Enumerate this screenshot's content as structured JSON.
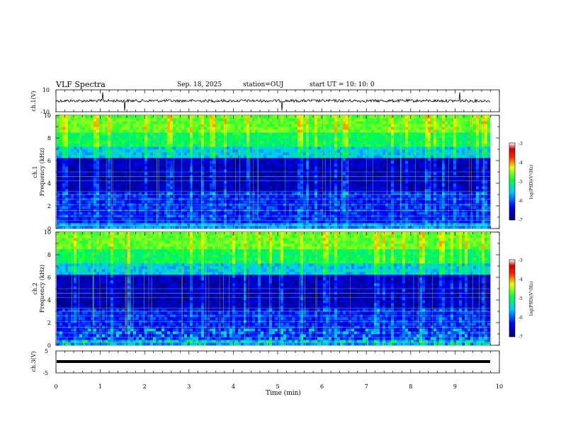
{
  "header": {
    "title": "VLF Spectra",
    "date": "Sep. 18, 2025",
    "station": "station=OUJ",
    "start_ut": "start UT =   10: 10: 0"
  },
  "chart_data": [
    {
      "type": "line",
      "panel": "ch.1 waveform",
      "ylabel": "ch.1(V)",
      "ylim": [
        -10,
        10
      ],
      "ytick_labels": [
        "10",
        "-10"
      ],
      "xlim": [
        0,
        10
      ],
      "baseline_value": 0,
      "series": [
        {
          "name": "ch.1",
          "description_values": {
            "mean": 0,
            "typical_amplitude": 1.5,
            "spike_times_min": [
              1.05,
              1.55,
              5.1,
              9.1
            ]
          }
        }
      ]
    },
    {
      "type": "heatmap",
      "panel": "ch.1 spectrogram",
      "ylabel": "ch.1\nFrequency (kHz)",
      "ylim": [
        0,
        10
      ],
      "ytick_labels": [
        "0",
        "2",
        "4",
        "6",
        "8",
        "10"
      ],
      "xlim": [
        0,
        9.85
      ],
      "colorbar": {
        "label": "log(PSD)(V²/Hz)",
        "range": [
          -7,
          -3
        ],
        "tick_labels": [
          "-3",
          "-4",
          "-5",
          "-6",
          "-7"
        ]
      }
    },
    {
      "type": "heatmap",
      "panel": "ch.2 spectrogram",
      "ylabel": "ch.2\nFrequency (kHz)",
      "ylim": [
        0,
        10
      ],
      "ytick_labels": [
        "0",
        "2",
        "4",
        "6",
        "8",
        "10"
      ],
      "xlim": [
        0,
        9.85
      ],
      "colorbar": {
        "label": "log(PSD)(V²/Hz)",
        "range": [
          -7,
          -3
        ],
        "tick_labels": [
          "-3",
          "-4",
          "-5",
          "-6",
          "-7"
        ]
      }
    },
    {
      "type": "line",
      "panel": "ch.3 waveform",
      "ylabel": "ch.3(V)",
      "ylim": [
        -5,
        5
      ],
      "ytick_labels": [
        "5",
        "-5"
      ],
      "xlim": [
        0,
        10
      ],
      "series": [
        {
          "name": "ch.3",
          "description_values": {
            "mean": -0.6
          }
        }
      ]
    }
  ],
  "xaxis": {
    "label": "Time (min)",
    "ticks": [
      "0",
      "1",
      "2",
      "3",
      "4",
      "5",
      "6",
      "7",
      "8",
      "9",
      "10"
    ]
  },
  "colors": {
    "axis": "#000000",
    "waveform": "#000000",
    "colormap": [
      "#000066",
      "#0000ff",
      "#00c8ff",
      "#00ff00",
      "#ffff00",
      "#ff0000",
      "#800000"
    ]
  }
}
